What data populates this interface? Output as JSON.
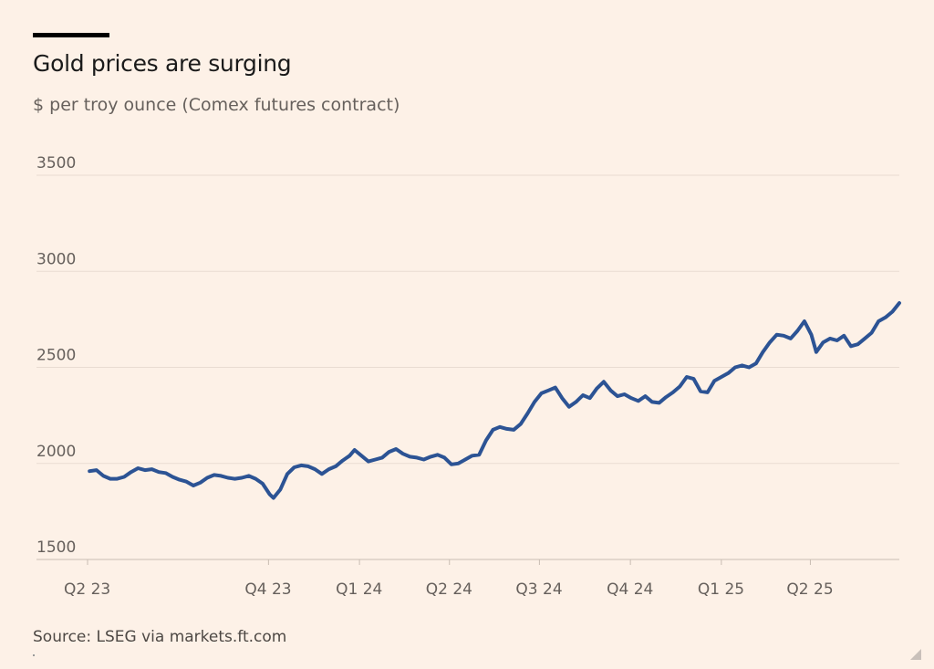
{
  "header": {
    "title": "Gold prices are surging",
    "subtitle": "$ per troy ounce (Comex futures contract)"
  },
  "footer": {
    "source": "Source: LSEG via markets.ft.com"
  },
  "colors": {
    "background": "#fdf1e7",
    "line": "#2c5394",
    "grid": "#e9dcd2",
    "axis_text": "#66605c"
  },
  "chart_data": {
    "type": "line",
    "title": "Gold prices are surging",
    "ylabel": "$ per troy ounce (Comex futures contract)",
    "xlabel": "",
    "ylim": [
      1500,
      3500
    ],
    "yticks": [
      1500,
      2000,
      2500,
      3000,
      3500
    ],
    "xlim": [
      "2023-04-01",
      "2025-06-30"
    ],
    "xticks": [
      {
        "date": "2023-04-01",
        "label": "Q2 23"
      },
      {
        "date": "2023-10-01",
        "label": "Q4 23"
      },
      {
        "date": "2024-01-01",
        "label": "Q1 24"
      },
      {
        "date": "2024-04-01",
        "label": "Q2 24"
      },
      {
        "date": "2024-07-01",
        "label": "Q3 24"
      },
      {
        "date": "2024-10-01",
        "label": "Q4 24"
      },
      {
        "date": "2025-01-01",
        "label": "Q1 25"
      },
      {
        "date": "2025-04-01",
        "label": "Q2 25"
      }
    ],
    "grid": true,
    "series": [
      {
        "values": [
          [
            "2023-04-03",
            1960
          ],
          [
            "2023-04-10",
            1965
          ],
          [
            "2023-04-17",
            1935
          ],
          [
            "2023-04-24",
            1920
          ],
          [
            "2023-05-01",
            1920
          ],
          [
            "2023-05-08",
            1930
          ],
          [
            "2023-05-15",
            1955
          ],
          [
            "2023-05-22",
            1975
          ],
          [
            "2023-05-29",
            1965
          ],
          [
            "2023-06-05",
            1970
          ],
          [
            "2023-06-12",
            1955
          ],
          [
            "2023-06-19",
            1950
          ],
          [
            "2023-06-26",
            1930
          ],
          [
            "2023-07-03",
            1915
          ],
          [
            "2023-07-10",
            1905
          ],
          [
            "2023-07-17",
            1885
          ],
          [
            "2023-07-24",
            1900
          ],
          [
            "2023-07-31",
            1925
          ],
          [
            "2023-08-07",
            1940
          ],
          [
            "2023-08-14",
            1935
          ],
          [
            "2023-08-21",
            1925
          ],
          [
            "2023-08-28",
            1920
          ],
          [
            "2023-09-04",
            1925
          ],
          [
            "2023-09-11",
            1935
          ],
          [
            "2023-09-18",
            1920
          ],
          [
            "2023-09-25",
            1895
          ],
          [
            "2023-10-02",
            1840
          ],
          [
            "2023-10-06",
            1820
          ],
          [
            "2023-10-13",
            1865
          ],
          [
            "2023-10-20",
            1945
          ],
          [
            "2023-10-27",
            1980
          ],
          [
            "2023-11-03",
            1990
          ],
          [
            "2023-11-10",
            1985
          ],
          [
            "2023-11-17",
            1970
          ],
          [
            "2023-11-24",
            1945
          ],
          [
            "2023-12-01",
            1970
          ],
          [
            "2023-12-08",
            1985
          ],
          [
            "2023-12-15",
            2015
          ],
          [
            "2023-12-22",
            2040
          ],
          [
            "2023-12-27",
            2070
          ],
          [
            "2024-01-03",
            2040
          ],
          [
            "2024-01-10",
            2010
          ],
          [
            "2024-01-17",
            2020
          ],
          [
            "2024-01-24",
            2030
          ],
          [
            "2024-01-31",
            2060
          ],
          [
            "2024-02-07",
            2075
          ],
          [
            "2024-02-14",
            2050
          ],
          [
            "2024-02-21",
            2035
          ],
          [
            "2024-02-28",
            2030
          ],
          [
            "2024-03-06",
            2020
          ],
          [
            "2024-03-13",
            2035
          ],
          [
            "2024-03-20",
            2045
          ],
          [
            "2024-03-27",
            2030
          ],
          [
            "2024-04-03",
            1995
          ],
          [
            "2024-04-10",
            2000
          ],
          [
            "2024-04-17",
            2020
          ],
          [
            "2024-04-24",
            2040
          ],
          [
            "2024-05-01",
            2045
          ],
          [
            "2024-05-08",
            2120
          ],
          [
            "2024-05-15",
            2175
          ],
          [
            "2024-05-22",
            2190
          ],
          [
            "2024-05-29",
            2180
          ],
          [
            "2024-06-05",
            2175
          ],
          [
            "2024-06-12",
            2205
          ],
          [
            "2024-06-19",
            2260
          ],
          [
            "2024-06-26",
            2320
          ],
          [
            "2024-07-03",
            2365
          ],
          [
            "2024-07-10",
            2380
          ],
          [
            "2024-07-17",
            2395
          ],
          [
            "2024-07-24",
            2340
          ],
          [
            "2024-07-31",
            2295
          ],
          [
            "2024-08-07",
            2320
          ],
          [
            "2024-08-14",
            2355
          ],
          [
            "2024-08-21",
            2340
          ],
          [
            "2024-08-28",
            2390
          ],
          [
            "2024-09-04",
            2425
          ],
          [
            "2024-09-11",
            2380
          ],
          [
            "2024-09-18",
            2350
          ],
          [
            "2024-09-25",
            2360
          ],
          [
            "2024-10-02",
            2340
          ],
          [
            "2024-10-09",
            2325
          ],
          [
            "2024-10-16",
            2350
          ],
          [
            "2024-10-23",
            2320
          ],
          [
            "2024-10-30",
            2315
          ],
          [
            "2024-11-06",
            2345
          ],
          [
            "2024-11-13",
            2370
          ],
          [
            "2024-11-20",
            2400
          ],
          [
            "2024-11-27",
            2450
          ],
          [
            "2024-12-04",
            2440
          ],
          [
            "2024-12-11",
            2375
          ],
          [
            "2024-12-18",
            2370
          ],
          [
            "2024-12-25",
            2430
          ],
          [
            "2025-01-01",
            2450
          ],
          [
            "2025-01-08",
            2470
          ],
          [
            "2025-01-15",
            2500
          ],
          [
            "2025-01-22",
            2510
          ],
          [
            "2025-01-29",
            2500
          ],
          [
            "2025-02-05",
            2520
          ],
          [
            "2025-02-12",
            2580
          ],
          [
            "2025-02-19",
            2630
          ],
          [
            "2025-02-26",
            2670
          ],
          [
            "2025-03-05",
            2665
          ],
          [
            "2025-03-12",
            2650
          ],
          [
            "2025-03-19",
            2690
          ],
          [
            "2025-03-26",
            2740
          ],
          [
            "2025-04-02",
            2670
          ],
          [
            "2025-04-07",
            2580
          ],
          [
            "2025-04-14",
            2630
          ],
          [
            "2025-04-21",
            2650
          ],
          [
            "2025-04-28",
            2640
          ],
          [
            "2025-05-05",
            2665
          ],
          [
            "2025-05-12",
            2610
          ],
          [
            "2025-05-19",
            2620
          ],
          [
            "2025-05-26",
            2650
          ],
          [
            "2025-06-02",
            2680
          ],
          [
            "2025-06-09",
            2740
          ],
          [
            "2025-06-16",
            2760
          ],
          [
            "2025-06-23",
            2790
          ],
          [
            "2025-06-30",
            2835
          ]
        ]
      }
    ]
  }
}
